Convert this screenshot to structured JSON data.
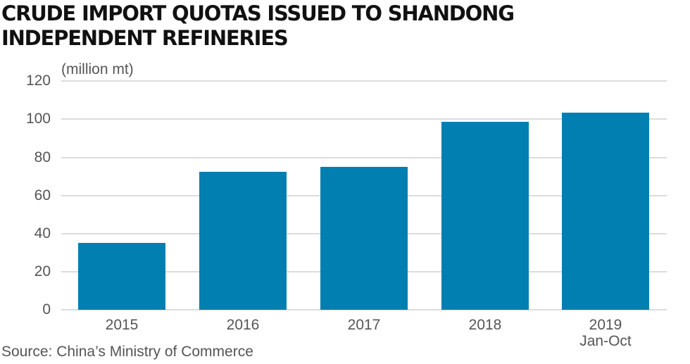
{
  "chart_data": {
    "type": "bar",
    "title": "CRUDE IMPORT QUOTAS ISSUED TO SHANDONG INDEPENDENT REFINERIES",
    "unit_label": "(million mt)",
    "xlabel": "",
    "ylabel": "(million mt)",
    "categories": [
      "2015",
      "2016",
      "2017",
      "2018",
      "2019 Jan-Oct"
    ],
    "category_lines": [
      [
        "2015"
      ],
      [
        "2016"
      ],
      [
        "2017"
      ],
      [
        "2018"
      ],
      [
        "2019",
        "Jan-Oct"
      ]
    ],
    "values": [
      35,
      72.5,
      74.8,
      98.5,
      103.3
    ],
    "ylim": [
      0,
      120
    ],
    "yticks": [
      0,
      20,
      40,
      60,
      80,
      100,
      120
    ],
    "grid": true,
    "legend": null,
    "bar_color": "#017fb1",
    "source": "Source: China’s Ministry of Commerce"
  },
  "header": {
    "title_line1": "CRUDE IMPORT QUOTAS ISSUED TO SHANDONG",
    "title_line2": "INDEPENDENT REFINERIES"
  },
  "axis": {
    "unit": "(million mt)",
    "yticks": [
      "120",
      "100",
      "80",
      "60",
      "40",
      "20",
      "0"
    ]
  },
  "xaxis": {
    "labels": [
      {
        "line1": "2015",
        "line2": ""
      },
      {
        "line1": "2016",
        "line2": ""
      },
      {
        "line1": "2017",
        "line2": ""
      },
      {
        "line1": "2018",
        "line2": ""
      },
      {
        "line1": "2019",
        "line2": "Jan-Oct"
      }
    ]
  },
  "footer": {
    "source": "Source: China’s Ministry of Commerce"
  }
}
